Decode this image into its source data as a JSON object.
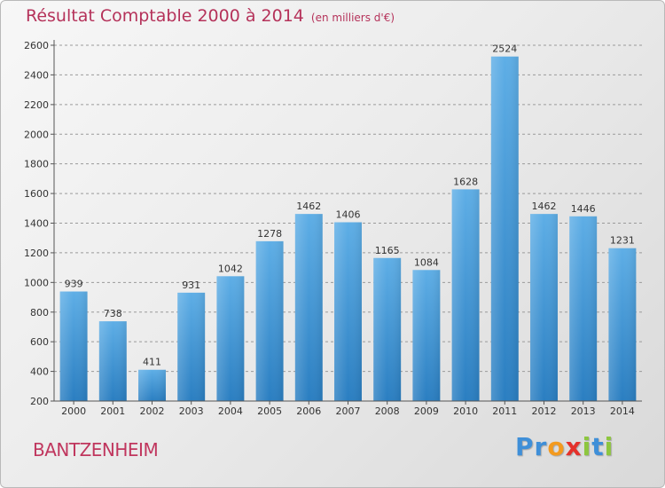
{
  "title": "Résultat Comptable 2000 à 2014",
  "subtitle": "(en milliers d'€)",
  "commune": "BANTZENHEIM",
  "logo": {
    "letters": [
      "P",
      "r",
      "o",
      "x",
      "i",
      "t",
      "i"
    ],
    "colors": [
      "#3f8fd8",
      "#3f8fd8",
      "#f39a1e",
      "#e4312b",
      "#8dc63f",
      "#3f8fd8",
      "#8dc63f"
    ]
  },
  "colors": {
    "bar_light": "#5eaee6",
    "bar_dark": "#2a7ec1",
    "title": "#b5325a"
  },
  "chart_data": {
    "type": "bar",
    "title": "Résultat Comptable 2000 à 2014",
    "subtitle": "(en milliers d'€)",
    "categories": [
      "2000",
      "2001",
      "2002",
      "2003",
      "2004",
      "2005",
      "2006",
      "2007",
      "2008",
      "2009",
      "2010",
      "2011",
      "2012",
      "2013",
      "2014"
    ],
    "values": [
      939,
      738,
      411,
      931,
      1042,
      1278,
      1462,
      1406,
      1165,
      1084,
      1628,
      2524,
      1462,
      1446,
      1231
    ],
    "ylim": [
      200,
      2600
    ],
    "yticks": [
      200,
      400,
      600,
      800,
      1000,
      1200,
      1400,
      1600,
      1800,
      2000,
      2200,
      2400,
      2600
    ],
    "grid": true,
    "xlabel": "",
    "ylabel": ""
  }
}
